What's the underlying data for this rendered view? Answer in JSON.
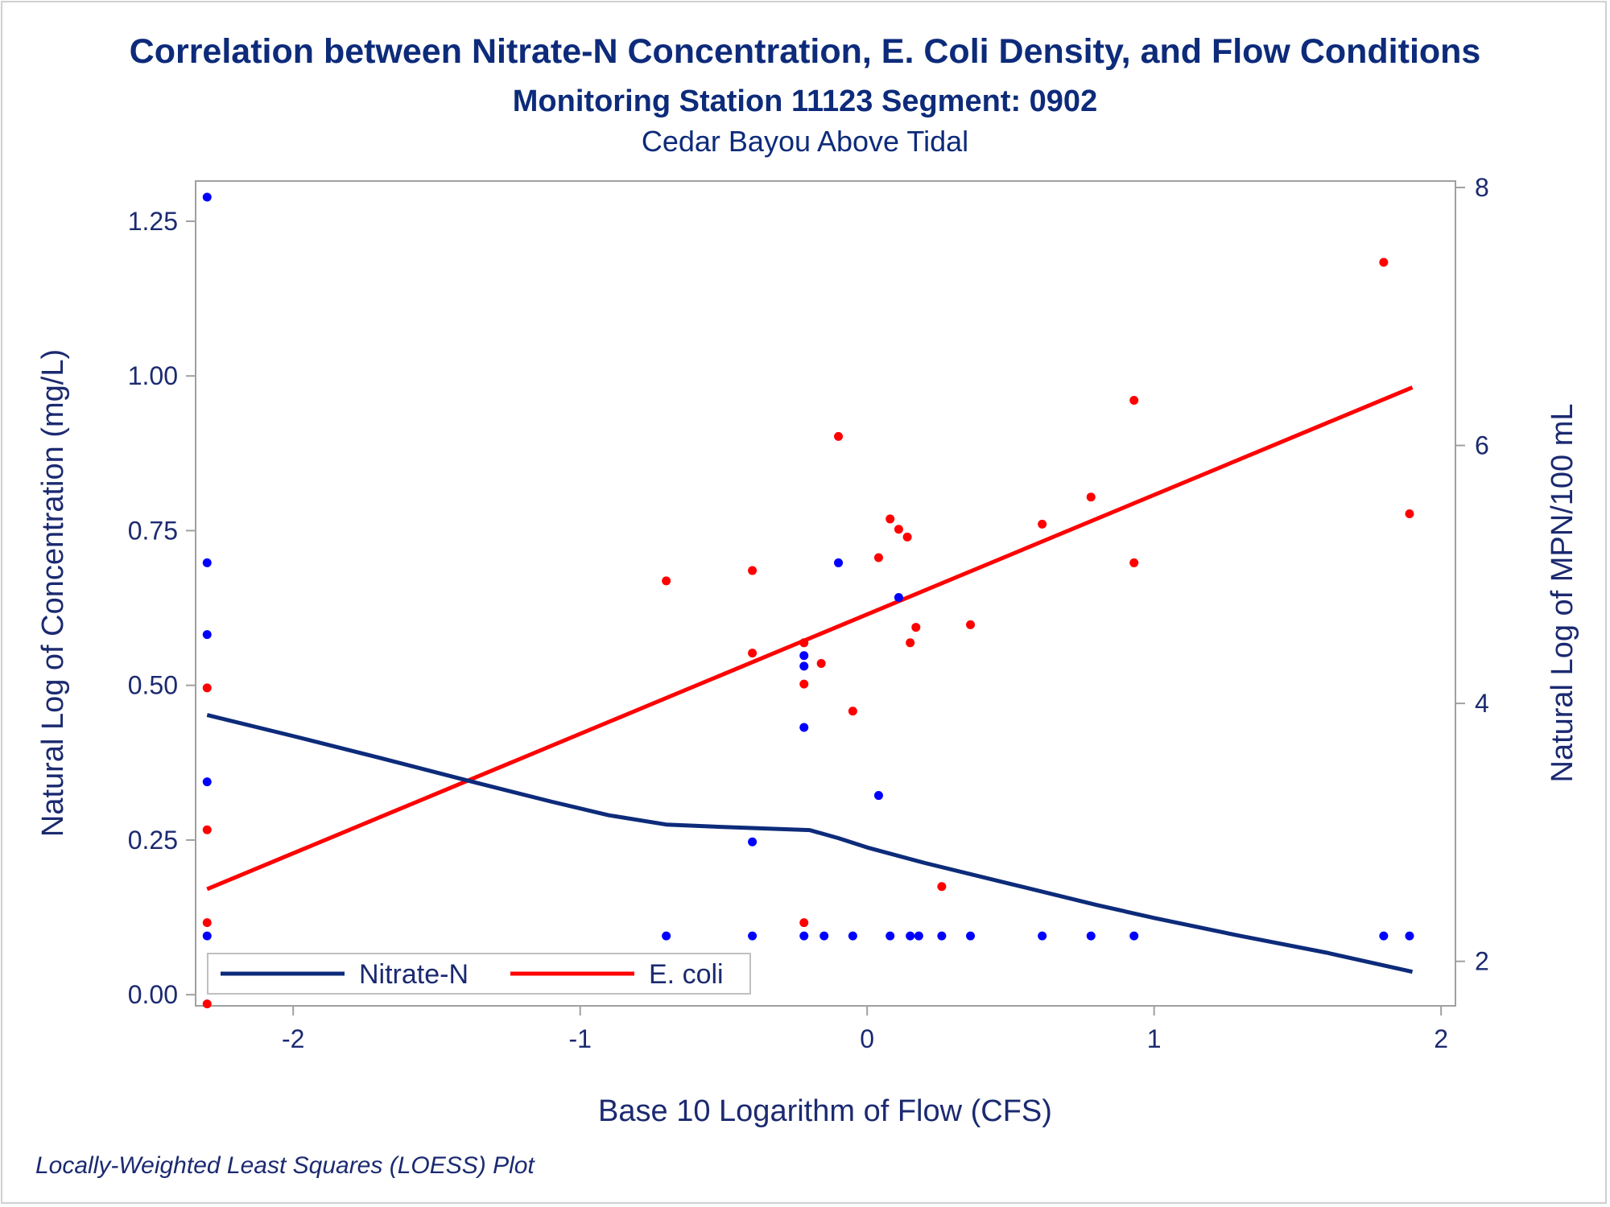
{
  "chart_data": {
    "type": "scatter",
    "title": "Correlation between Nitrate-N Concentration, E. Coli Density, and Flow Conditions",
    "subtitle": "Monitoring Station 11123 Segment: 0902",
    "subtitle2": "Cedar Bayou Above Tidal",
    "xlabel": "Base 10 Logarithm of Flow (CFS)",
    "ylabel": "Natural Log of Concentration (mg/L)",
    "y2label": "Natural Log of MPN/100 mL",
    "footnote": "Locally-Weighted Least Squares (LOESS) Plot",
    "xlim": [
      -2.34,
      2.05
    ],
    "ylim": [
      -0.018,
      1.315
    ],
    "y2lim": [
      1.655,
      8.05
    ],
    "xticks": [
      "-2",
      "-1",
      "0",
      "1",
      "2"
    ],
    "yticks": [
      "0.00",
      "0.25",
      "0.50",
      "0.75",
      "1.00",
      "1.25"
    ],
    "y2ticks": [
      "2",
      "4",
      "6",
      "8"
    ],
    "grid": false,
    "legend_position": "bottom-left",
    "colors": {
      "nitrate": "#0d2b7a",
      "ecoli": "#ff0000",
      "nitrate_points": "#0000ff",
      "ecoli_points": "#ff0000",
      "text": "#1b2a70",
      "frame": "#a0a0a0"
    },
    "series": [
      {
        "name": "Nitrate-N",
        "axis": "left",
        "points": [
          [
            -2.3,
            1.289
          ],
          [
            -2.3,
            0.698
          ],
          [
            -2.3,
            0.582
          ],
          [
            -2.3,
            0.344
          ],
          [
            -2.3,
            0.095
          ],
          [
            -0.7,
            0.095
          ],
          [
            -0.4,
            0.247
          ],
          [
            -0.4,
            0.095
          ],
          [
            -0.22,
            0.548
          ],
          [
            -0.22,
            0.531
          ],
          [
            -0.22,
            0.432
          ],
          [
            -0.22,
            0.095
          ],
          [
            -0.15,
            0.095
          ],
          [
            -0.1,
            0.698
          ],
          [
            -0.05,
            0.095
          ],
          [
            0.04,
            0.322
          ],
          [
            0.08,
            0.095
          ],
          [
            0.11,
            0.642
          ],
          [
            0.15,
            0.095
          ],
          [
            0.18,
            0.095
          ],
          [
            0.26,
            0.095
          ],
          [
            0.36,
            0.095
          ],
          [
            0.61,
            0.095
          ],
          [
            0.78,
            0.095
          ],
          [
            0.93,
            0.095
          ],
          [
            1.8,
            0.095
          ],
          [
            1.89,
            0.095
          ]
        ],
        "loess": [
          [
            -2.3,
            0.452
          ],
          [
            -2.0,
            0.418
          ],
          [
            -1.7,
            0.383
          ],
          [
            -1.4,
            0.347
          ],
          [
            -1.1,
            0.312
          ],
          [
            -0.9,
            0.29
          ],
          [
            -0.7,
            0.275
          ],
          [
            -0.5,
            0.271
          ],
          [
            -0.2,
            0.266
          ],
          [
            -0.1,
            0.253
          ],
          [
            0.0,
            0.238
          ],
          [
            0.2,
            0.213
          ],
          [
            0.5,
            0.179
          ],
          [
            0.8,
            0.145
          ],
          [
            1.0,
            0.124
          ],
          [
            1.3,
            0.095
          ],
          [
            1.6,
            0.068
          ],
          [
            1.9,
            0.037
          ]
        ]
      },
      {
        "name": "E. coli",
        "axis": "right",
        "points": [
          [
            -2.3,
            4.12
          ],
          [
            -2.3,
            3.02
          ],
          [
            -2.3,
            2.3
          ],
          [
            -2.3,
            1.67
          ],
          [
            -0.7,
            4.95
          ],
          [
            -0.4,
            5.03
          ],
          [
            -0.4,
            4.39
          ],
          [
            -0.22,
            4.47
          ],
          [
            -0.22,
            4.15
          ],
          [
            -0.22,
            2.3
          ],
          [
            -0.16,
            4.31
          ],
          [
            -0.1,
            6.07
          ],
          [
            -0.05,
            3.94
          ],
          [
            0.04,
            5.13
          ],
          [
            0.08,
            5.43
          ],
          [
            0.11,
            5.35
          ],
          [
            0.14,
            5.29
          ],
          [
            0.15,
            4.47
          ],
          [
            0.17,
            4.59
          ],
          [
            0.26,
            2.58
          ],
          [
            0.36,
            4.61
          ],
          [
            0.61,
            5.39
          ],
          [
            0.78,
            5.6
          ],
          [
            0.93,
            5.09
          ],
          [
            0.93,
            6.35
          ],
          [
            1.8,
            7.42
          ],
          [
            1.89,
            5.47
          ]
        ],
        "loess": [
          [
            -2.3,
            2.56
          ],
          [
            1.9,
            6.45
          ]
        ]
      }
    ]
  }
}
